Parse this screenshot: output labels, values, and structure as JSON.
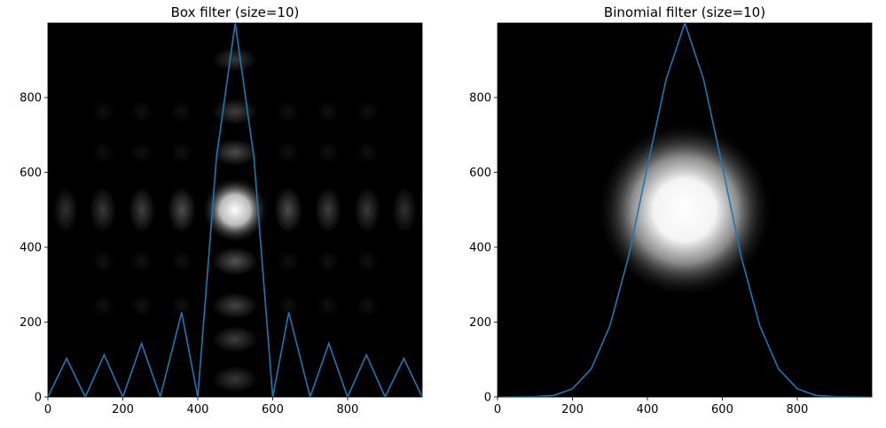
{
  "figure": {
    "background": "#ffffff",
    "image_cmap": "gray",
    "line_color": "#1f77b4"
  },
  "chart_data": [
    {
      "type": "line",
      "title": "Box filter (size=10)",
      "xlabel": "",
      "ylabel": "",
      "xlim": [
        0,
        999
      ],
      "ylim": [
        0,
        999
      ],
      "xticks": [
        0,
        200,
        400,
        600,
        800
      ],
      "yticks": [
        0,
        200,
        400,
        600,
        800
      ],
      "background_image": "2D box-filter frequency response (|sinc| pattern), bright center at (500, 500)",
      "x": [
        0,
        50,
        100,
        150,
        200,
        250,
        300,
        357,
        400,
        450,
        500,
        550,
        600,
        643,
        700,
        750,
        800,
        850,
        900,
        950,
        999
      ],
      "values": [
        0,
        103,
        0,
        113,
        0,
        143,
        0,
        226,
        0,
        640,
        999,
        640,
        0,
        226,
        0,
        143,
        0,
        113,
        0,
        103,
        0
      ]
    },
    {
      "type": "line",
      "title": "Binomial filter (size=10)",
      "xlabel": "",
      "ylabel": "",
      "xlim": [
        0,
        999
      ],
      "ylim": [
        0,
        999
      ],
      "xticks": [
        0,
        200,
        400,
        600,
        800
      ],
      "yticks": [
        0,
        200,
        400,
        600,
        800
      ],
      "background_image": "2D binomial-filter frequency response (Gaussian-like blob), bright center at (500, 500)",
      "x": [
        0,
        100,
        150,
        200,
        250,
        300,
        350,
        400,
        450,
        500,
        550,
        600,
        650,
        700,
        750,
        800,
        850,
        900,
        999
      ],
      "values": [
        0,
        1,
        4,
        22,
        75,
        190,
        376,
        616,
        849,
        999,
        849,
        616,
        376,
        190,
        75,
        22,
        4,
        1,
        0
      ]
    }
  ]
}
